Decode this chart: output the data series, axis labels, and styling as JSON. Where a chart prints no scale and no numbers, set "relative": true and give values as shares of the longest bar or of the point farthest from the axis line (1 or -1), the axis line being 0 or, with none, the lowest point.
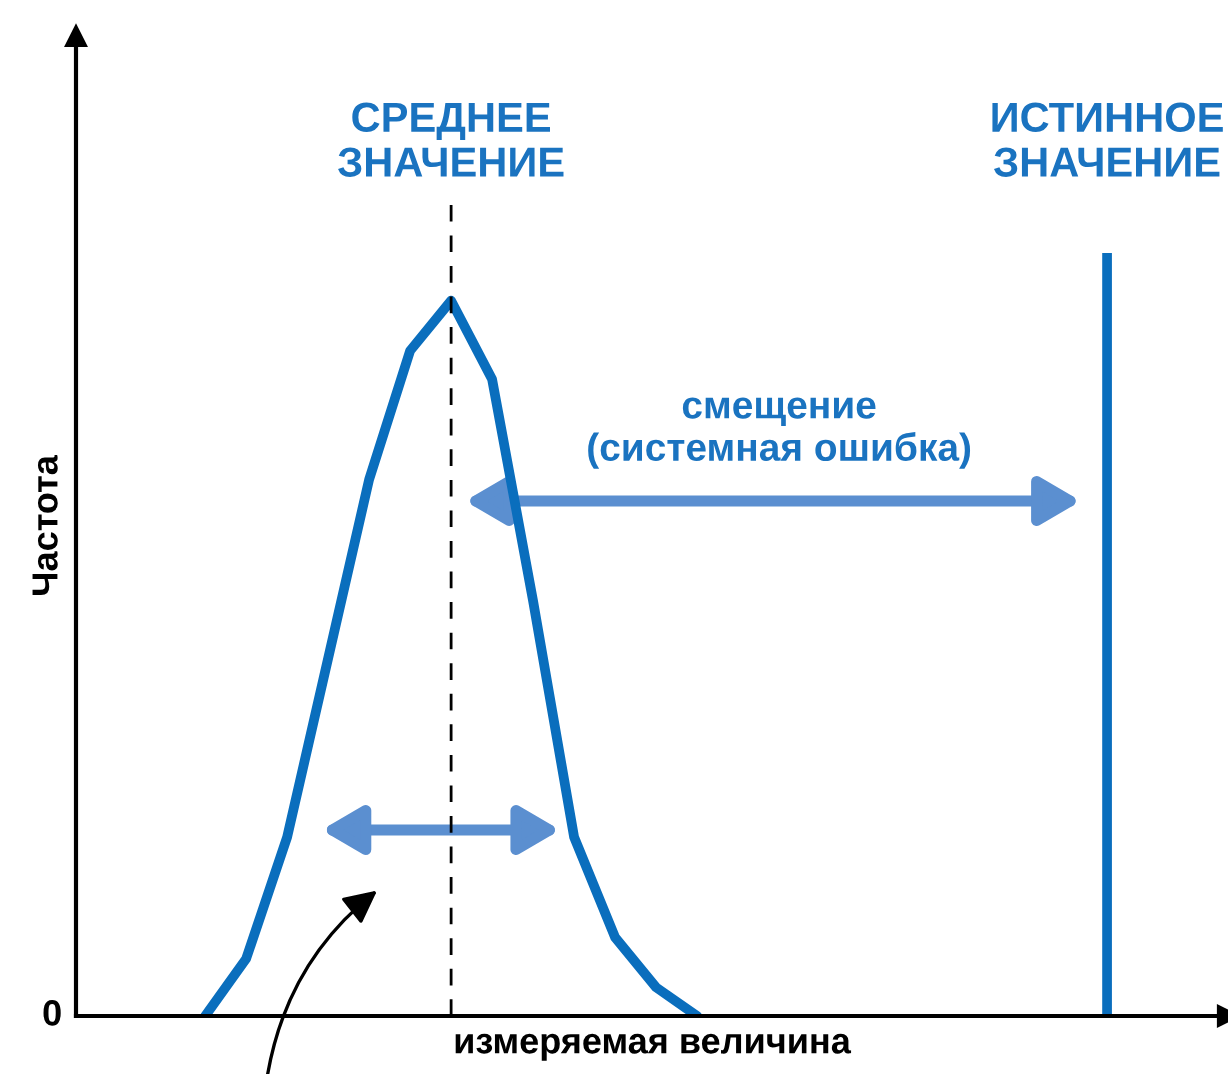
{
  "chart_data": {
    "type": "line",
    "relative": true,
    "xlabel": "измеряемая величина",
    "ylabel": "Частота",
    "categories": [
      null,
      null,
      null,
      null,
      null,
      null,
      null,
      null,
      null,
      null,
      null,
      null,
      null,
      null,
      null,
      null,
      null,
      null,
      null,
      null,
      null,
      null,
      null,
      null,
      null,
      null,
      null,
      null
    ],
    "series": [
      {
        "color": "#0a6ebd",
        "values": [
          null,
          null,
          null,
          0,
          0.08,
          0.25,
          0.5,
          0.75,
          0.93,
          1,
          0.89,
          0.58,
          0.25,
          0.11,
          0.04,
          0,
          null,
          null,
          null,
          null,
          null,
          null,
          null,
          null,
          null,
          null,
          null,
          null
        ]
      }
    ],
    "annotations": [
      "СРЕДНЕЕ\nЗНАЧЕНИЕ",
      "ИСТИННОЕ\nЗНАЧЕНИЕ",
      "0",
      "смещение\n(системная ошибка)"
    ],
    "legend": false,
    "marker": "none",
    "line_style": "solid"
  }
}
